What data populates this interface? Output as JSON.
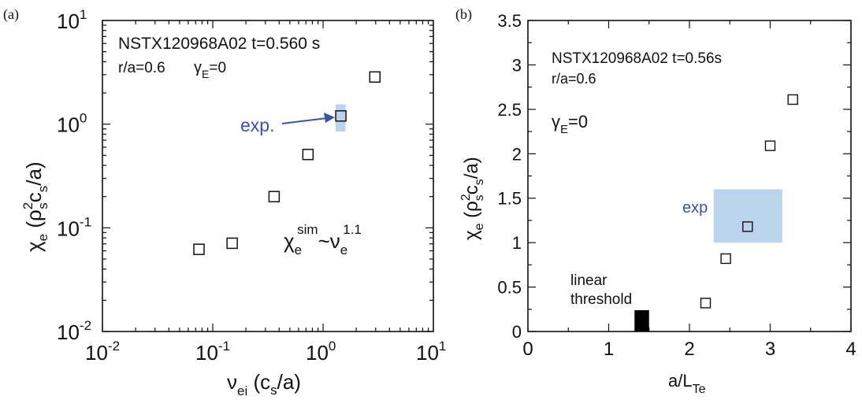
{
  "colors": {
    "axis": "#111111",
    "exp_fill": "#bcd3ee",
    "exp_text": "#3a52a8",
    "threshold": "#000000"
  },
  "chart_data": [
    {
      "type": "scatter",
      "panel_label": "(a)",
      "xscale": "log",
      "yscale": "log",
      "xlim": [
        0.01,
        10
      ],
      "ylim": [
        0.01,
        10
      ],
      "xlabel": {
        "base": "ν",
        "sub": "ei",
        "rest": " (c",
        "sub2": "s",
        "end": "/a)"
      },
      "ylabel": {
        "base": "χ",
        "sub": "e",
        "rest": " (ρ",
        "sup": "2",
        "sub2": "s",
        "mid": "c",
        "sub3": "s",
        "end": "/a)"
      },
      "x_ticks": [
        {
          "v": 0.01,
          "b": "10",
          "e": "-2"
        },
        {
          "v": 0.1,
          "b": "10",
          "e": "-1"
        },
        {
          "v": 1,
          "b": "10",
          "e": "0"
        },
        {
          "v": 10,
          "b": "10",
          "e": "1"
        }
      ],
      "y_ticks": [
        {
          "v": 0.01,
          "b": "10",
          "e": "-2"
        },
        {
          "v": 0.1,
          "b": "10",
          "e": "-1"
        },
        {
          "v": 1,
          "b": "10",
          "e": "0"
        },
        {
          "v": 10,
          "b": "10",
          "e": "1"
        }
      ],
      "points": [
        {
          "x": 0.075,
          "y": 0.062
        },
        {
          "x": 0.15,
          "y": 0.071
        },
        {
          "x": 0.36,
          "y": 0.2
        },
        {
          "x": 0.73,
          "y": 0.51
        },
        {
          "x": 1.45,
          "y": 1.2
        },
        {
          "x": 2.95,
          "y": 2.85
        }
      ],
      "exp_region": {
        "x": [
          1.3,
          1.6
        ],
        "y": [
          0.85,
          1.55
        ]
      },
      "annotations": {
        "line1": "NSTX120968A02 t=0.560 s",
        "line2a": "r/a=0.6",
        "gamma_base": "γ",
        "gamma_sub": "E",
        "gamma_val": "=0",
        "exp_label": "exp.",
        "scaling_chi": "χ",
        "scaling_sub_e": "e",
        "scaling_sup_sim": "sim",
        "scaling_nu": "~ν",
        "scaling_sub_e2": "e",
        "scaling_sup_pow": "1.1"
      }
    },
    {
      "type": "scatter",
      "panel_label": "(b)",
      "xlim": [
        0,
        4
      ],
      "ylim": [
        0,
        3.5
      ],
      "xlabel": {
        "base": "a/L",
        "sub": "Te"
      },
      "ylabel": {
        "base": "χ",
        "sub": "e",
        "rest": " (ρ",
        "sup": "2",
        "sub2": "s",
        "mid": "c",
        "sub3": "s",
        "end": "/a)"
      },
      "x_ticks": [
        "0",
        "1",
        "2",
        "3",
        "4"
      ],
      "x_tick_vals": [
        0,
        1,
        2,
        3,
        4
      ],
      "y_ticks": [
        "0",
        "0.5",
        "1",
        "1.5",
        "2",
        "2.5",
        "3",
        "3.5"
      ],
      "y_tick_vals": [
        0,
        0.5,
        1,
        1.5,
        2,
        2.5,
        3,
        3.5
      ],
      "points": [
        {
          "x": 2.2,
          "y": 0.32
        },
        {
          "x": 2.45,
          "y": 0.82
        },
        {
          "x": 2.72,
          "y": 1.18
        },
        {
          "x": 3.0,
          "y": 2.09
        },
        {
          "x": 3.28,
          "y": 2.61
        }
      ],
      "exp_region": {
        "x": [
          2.3,
          3.15
        ],
        "y": [
          1.0,
          1.6
        ]
      },
      "threshold_bar": {
        "x": [
          1.32,
          1.5
        ],
        "y": [
          0,
          0.24
        ]
      },
      "annotations": {
        "line1": "NSTX120968A02 t=0.56s",
        "line2": "r/a=0.6",
        "gamma_base": "γ",
        "gamma_sub": "E",
        "gamma_val": "=0",
        "exp_label": "exp",
        "threshold_line1": "linear",
        "threshold_line2": "threshold"
      }
    }
  ]
}
